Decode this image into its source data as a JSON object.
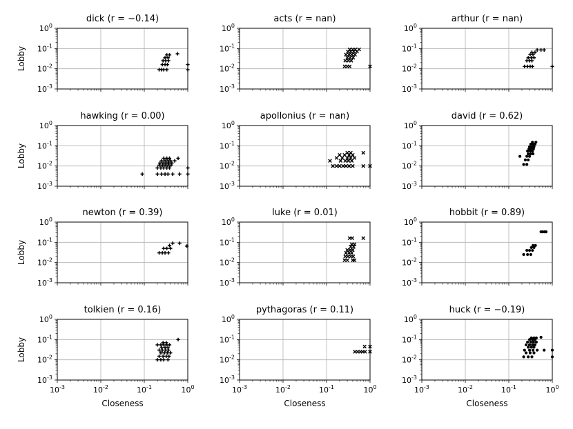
{
  "figure": {
    "xlabel": "Closeness",
    "ylabel": "Lobby"
  },
  "chart_data": [
    {
      "type": "scatter",
      "title": "dick (r = −0.14)",
      "name": "dick",
      "r": "−0.14",
      "marker": "plus",
      "xlabel": "",
      "ylabel": "Lobby",
      "xscale": "log",
      "yscale": "log",
      "xlim": [
        0.001,
        1
      ],
      "ylim": [
        0.001,
        1
      ],
      "grid": true,
      "points": [
        [
          0.22,
          0.009
        ],
        [
          0.25,
          0.009
        ],
        [
          0.28,
          0.009
        ],
        [
          0.33,
          0.009
        ],
        [
          0.26,
          0.016
        ],
        [
          0.3,
          0.016
        ],
        [
          0.34,
          0.016
        ],
        [
          0.27,
          0.025
        ],
        [
          0.31,
          0.025
        ],
        [
          0.36,
          0.025
        ],
        [
          0.3,
          0.035
        ],
        [
          0.35,
          0.035
        ],
        [
          0.33,
          0.048
        ],
        [
          0.38,
          0.048
        ],
        [
          0.58,
          0.055
        ],
        [
          1.0,
          0.009
        ],
        [
          1.0,
          0.016
        ]
      ]
    },
    {
      "type": "scatter",
      "title": "acts (r = nan)",
      "name": "acts",
      "r": "nan",
      "marker": "x",
      "xlabel": "",
      "ylabel": "",
      "xscale": "log",
      "yscale": "log",
      "xlim": [
        0.001,
        1
      ],
      "ylim": [
        0.001,
        1
      ],
      "grid": true,
      "points": [
        [
          0.26,
          0.013
        ],
        [
          0.3,
          0.013
        ],
        [
          0.34,
          0.013
        ],
        [
          0.27,
          0.025
        ],
        [
          0.32,
          0.025
        ],
        [
          0.37,
          0.025
        ],
        [
          0.3,
          0.035
        ],
        [
          0.35,
          0.035
        ],
        [
          0.41,
          0.035
        ],
        [
          0.28,
          0.05
        ],
        [
          0.33,
          0.05
        ],
        [
          0.38,
          0.05
        ],
        [
          0.45,
          0.05
        ],
        [
          0.31,
          0.07
        ],
        [
          0.36,
          0.07
        ],
        [
          0.42,
          0.07
        ],
        [
          0.5,
          0.07
        ],
        [
          0.34,
          0.09
        ],
        [
          0.4,
          0.09
        ],
        [
          0.46,
          0.09
        ],
        [
          0.56,
          0.09
        ],
        [
          1.0,
          0.013
        ]
      ]
    },
    {
      "type": "scatter",
      "title": "arthur (r = nan)",
      "name": "arthur",
      "r": "nan",
      "marker": "plus",
      "xlabel": "",
      "ylabel": "",
      "xscale": "log",
      "yscale": "log",
      "xlim": [
        0.001,
        1
      ],
      "ylim": [
        0.001,
        1
      ],
      "grid": true,
      "points": [
        [
          0.23,
          0.013
        ],
        [
          0.27,
          0.013
        ],
        [
          0.31,
          0.013
        ],
        [
          0.35,
          0.013
        ],
        [
          0.26,
          0.025
        ],
        [
          0.3,
          0.025
        ],
        [
          0.34,
          0.025
        ],
        [
          0.28,
          0.035
        ],
        [
          0.33,
          0.035
        ],
        [
          0.38,
          0.035
        ],
        [
          0.31,
          0.05
        ],
        [
          0.36,
          0.05
        ],
        [
          0.34,
          0.065
        ],
        [
          0.4,
          0.065
        ],
        [
          0.45,
          0.085
        ],
        [
          0.55,
          0.085
        ],
        [
          0.65,
          0.085
        ],
        [
          1.0,
          0.013
        ]
      ]
    },
    {
      "type": "scatter",
      "title": "hawking (r = 0.00)",
      "name": "hawking",
      "r": "0.00",
      "marker": "plus",
      "xlabel": "",
      "ylabel": "Lobby",
      "xscale": "log",
      "yscale": "log",
      "xlim": [
        0.001,
        1
      ],
      "ylim": [
        0.001,
        1
      ],
      "grid": true,
      "points": [
        [
          0.09,
          0.004
        ],
        [
          0.2,
          0.004
        ],
        [
          0.25,
          0.004
        ],
        [
          0.3,
          0.004
        ],
        [
          0.35,
          0.004
        ],
        [
          0.45,
          0.004
        ],
        [
          0.65,
          0.004
        ],
        [
          1.0,
          0.004
        ],
        [
          0.2,
          0.008
        ],
        [
          0.24,
          0.008
        ],
        [
          0.28,
          0.008
        ],
        [
          0.33,
          0.008
        ],
        [
          0.38,
          0.008
        ],
        [
          1.0,
          0.008
        ],
        [
          0.22,
          0.011
        ],
        [
          0.26,
          0.011
        ],
        [
          0.3,
          0.011
        ],
        [
          0.35,
          0.011
        ],
        [
          0.41,
          0.011
        ],
        [
          0.23,
          0.014
        ],
        [
          0.27,
          0.014
        ],
        [
          0.32,
          0.014
        ],
        [
          0.37,
          0.014
        ],
        [
          0.43,
          0.014
        ],
        [
          0.25,
          0.018
        ],
        [
          0.3,
          0.018
        ],
        [
          0.35,
          0.018
        ],
        [
          0.4,
          0.018
        ],
        [
          0.5,
          0.018
        ],
        [
          0.28,
          0.024
        ],
        [
          0.33,
          0.024
        ],
        [
          0.38,
          0.024
        ],
        [
          0.6,
          0.024
        ]
      ]
    },
    {
      "type": "scatter",
      "title": "apollonius (r = nan)",
      "name": "apollonius",
      "r": "nan",
      "marker": "x",
      "xlabel": "",
      "ylabel": "",
      "xscale": "log",
      "yscale": "log",
      "xlim": [
        0.001,
        1
      ],
      "ylim": [
        0.001,
        1
      ],
      "grid": true,
      "points": [
        [
          0.14,
          0.01
        ],
        [
          0.17,
          0.01
        ],
        [
          0.2,
          0.01
        ],
        [
          0.24,
          0.01
        ],
        [
          0.28,
          0.01
        ],
        [
          0.33,
          0.01
        ],
        [
          0.4,
          0.01
        ],
        [
          0.7,
          0.01
        ],
        [
          1.0,
          0.01
        ],
        [
          0.12,
          0.018
        ],
        [
          0.21,
          0.018
        ],
        [
          0.27,
          0.018
        ],
        [
          0.32,
          0.018
        ],
        [
          0.38,
          0.018
        ],
        [
          0.17,
          0.025
        ],
        [
          0.23,
          0.025
        ],
        [
          0.3,
          0.025
        ],
        [
          0.36,
          0.025
        ],
        [
          0.44,
          0.025
        ],
        [
          0.2,
          0.035
        ],
        [
          0.26,
          0.035
        ],
        [
          0.33,
          0.035
        ],
        [
          0.4,
          0.035
        ],
        [
          0.3,
          0.045
        ],
        [
          0.36,
          0.045
        ],
        [
          0.7,
          0.045
        ]
      ]
    },
    {
      "type": "scatter",
      "title": "david (r = 0.62)",
      "name": "david",
      "r": "0.62",
      "marker": "dot",
      "xlabel": "",
      "ylabel": "",
      "xscale": "log",
      "yscale": "log",
      "xlim": [
        0.001,
        1
      ],
      "ylim": [
        0.001,
        1
      ],
      "grid": true,
      "points": [
        [
          0.18,
          0.03
        ],
        [
          0.22,
          0.012
        ],
        [
          0.26,
          0.012
        ],
        [
          0.24,
          0.02
        ],
        [
          0.28,
          0.02
        ],
        [
          0.26,
          0.03
        ],
        [
          0.3,
          0.03
        ],
        [
          0.28,
          0.04
        ],
        [
          0.32,
          0.04
        ],
        [
          0.36,
          0.04
        ],
        [
          0.27,
          0.055
        ],
        [
          0.31,
          0.055
        ],
        [
          0.35,
          0.055
        ],
        [
          0.29,
          0.07
        ],
        [
          0.33,
          0.07
        ],
        [
          0.37,
          0.07
        ],
        [
          0.3,
          0.09
        ],
        [
          0.34,
          0.09
        ],
        [
          0.38,
          0.09
        ],
        [
          0.32,
          0.12
        ],
        [
          0.36,
          0.12
        ],
        [
          0.4,
          0.12
        ],
        [
          0.35,
          0.15
        ],
        [
          0.42,
          0.15
        ]
      ]
    },
    {
      "type": "scatter",
      "title": "newton (r = 0.39)",
      "name": "newton",
      "r": "0.39",
      "marker": "plus",
      "xlabel": "",
      "ylabel": "Lobby",
      "xscale": "log",
      "yscale": "log",
      "xlim": [
        0.001,
        1
      ],
      "ylim": [
        0.001,
        1
      ],
      "grid": true,
      "points": [
        [
          0.22,
          0.03
        ],
        [
          0.26,
          0.03
        ],
        [
          0.3,
          0.03
        ],
        [
          0.36,
          0.03
        ],
        [
          0.28,
          0.05
        ],
        [
          0.33,
          0.05
        ],
        [
          0.4,
          0.05
        ],
        [
          0.38,
          0.07
        ],
        [
          0.45,
          0.09
        ],
        [
          0.65,
          0.09
        ],
        [
          0.95,
          0.065
        ]
      ]
    },
    {
      "type": "scatter",
      "title": "luke (r = 0.01)",
      "name": "luke",
      "r": "0.01",
      "marker": "x",
      "xlabel": "",
      "ylabel": "",
      "xscale": "log",
      "yscale": "log",
      "xlim": [
        0.001,
        1
      ],
      "ylim": [
        0.001,
        1
      ],
      "grid": true,
      "points": [
        [
          0.26,
          0.013
        ],
        [
          0.3,
          0.013
        ],
        [
          0.4,
          0.013
        ],
        [
          0.44,
          0.013
        ],
        [
          0.27,
          0.02
        ],
        [
          0.31,
          0.02
        ],
        [
          0.36,
          0.02
        ],
        [
          0.41,
          0.02
        ],
        [
          0.28,
          0.03
        ],
        [
          0.33,
          0.03
        ],
        [
          0.38,
          0.03
        ],
        [
          0.3,
          0.042
        ],
        [
          0.35,
          0.042
        ],
        [
          0.4,
          0.042
        ],
        [
          0.36,
          0.06
        ],
        [
          0.42,
          0.06
        ],
        [
          0.38,
          0.08
        ],
        [
          0.44,
          0.08
        ],
        [
          0.34,
          0.16
        ],
        [
          0.39,
          0.16
        ],
        [
          0.7,
          0.16
        ]
      ]
    },
    {
      "type": "scatter",
      "title": "hobbit (r = 0.89)",
      "name": "hobbit",
      "r": "0.89",
      "marker": "dot",
      "xlabel": "",
      "ylabel": "",
      "xscale": "log",
      "yscale": "log",
      "xlim": [
        0.001,
        1
      ],
      "ylim": [
        0.001,
        1
      ],
      "grid": true,
      "points": [
        [
          0.22,
          0.025
        ],
        [
          0.27,
          0.025
        ],
        [
          0.32,
          0.025
        ],
        [
          0.26,
          0.04
        ],
        [
          0.3,
          0.04
        ],
        [
          0.35,
          0.04
        ],
        [
          0.33,
          0.055
        ],
        [
          0.38,
          0.055
        ],
        [
          0.36,
          0.07
        ],
        [
          0.41,
          0.07
        ],
        [
          0.55,
          0.33
        ],
        [
          0.6,
          0.33
        ],
        [
          0.66,
          0.33
        ],
        [
          0.72,
          0.33
        ]
      ]
    },
    {
      "type": "scatter",
      "title": "tolkien (r = 0.16)",
      "name": "tolkien",
      "r": "0.16",
      "marker": "plus",
      "xlabel": "",
      "ylabel": "Lobby",
      "xscale": "log",
      "yscale": "log",
      "xlim": [
        0.001,
        1
      ],
      "ylim": [
        0.001,
        1
      ],
      "grid": true,
      "points": [
        [
          0.2,
          0.01
        ],
        [
          0.24,
          0.01
        ],
        [
          0.28,
          0.01
        ],
        [
          0.35,
          0.01
        ],
        [
          0.22,
          0.015
        ],
        [
          0.27,
          0.015
        ],
        [
          0.32,
          0.015
        ],
        [
          0.37,
          0.015
        ],
        [
          0.24,
          0.022
        ],
        [
          0.29,
          0.022
        ],
        [
          0.34,
          0.022
        ],
        [
          0.4,
          0.022
        ],
        [
          0.22,
          0.03
        ],
        [
          0.26,
          0.03
        ],
        [
          0.31,
          0.03
        ],
        [
          0.36,
          0.03
        ],
        [
          0.25,
          0.04
        ],
        [
          0.3,
          0.04
        ],
        [
          0.35,
          0.04
        ],
        [
          0.2,
          0.055
        ],
        [
          0.24,
          0.055
        ],
        [
          0.28,
          0.055
        ],
        [
          0.33,
          0.055
        ],
        [
          0.38,
          0.055
        ],
        [
          0.27,
          0.07
        ],
        [
          0.32,
          0.07
        ],
        [
          0.6,
          0.1
        ]
      ]
    },
    {
      "type": "scatter",
      "title": "pythagoras (r = 0.11)",
      "name": "pythagoras",
      "r": "0.11",
      "marker": "x",
      "xlabel": "",
      "ylabel": "",
      "xscale": "log",
      "yscale": "log",
      "xlim": [
        0.001,
        1
      ],
      "ylim": [
        0.001,
        1
      ],
      "grid": true,
      "points": [
        [
          0.45,
          0.025
        ],
        [
          0.52,
          0.025
        ],
        [
          0.6,
          0.025
        ],
        [
          0.68,
          0.025
        ],
        [
          0.77,
          0.025
        ],
        [
          1.0,
          0.025
        ],
        [
          0.75,
          0.045
        ],
        [
          1.0,
          0.045
        ]
      ]
    },
    {
      "type": "scatter",
      "title": "huck (r = −0.19)",
      "name": "huck",
      "r": "−0.19",
      "marker": "dot",
      "xlabel": "",
      "ylabel": "",
      "xscale": "log",
      "yscale": "log",
      "xlim": [
        0.001,
        1
      ],
      "ylim": [
        0.001,
        1
      ],
      "grid": true,
      "points": [
        [
          0.22,
          0.014
        ],
        [
          0.28,
          0.014
        ],
        [
          0.34,
          0.014
        ],
        [
          0.25,
          0.022
        ],
        [
          0.31,
          0.022
        ],
        [
          0.38,
          0.022
        ],
        [
          0.23,
          0.03
        ],
        [
          0.3,
          0.03
        ],
        [
          0.36,
          0.03
        ],
        [
          0.45,
          0.03
        ],
        [
          0.65,
          0.03
        ],
        [
          0.28,
          0.042
        ],
        [
          0.33,
          0.042
        ],
        [
          0.38,
          0.042
        ],
        [
          0.25,
          0.055
        ],
        [
          0.3,
          0.055
        ],
        [
          0.35,
          0.055
        ],
        [
          0.4,
          0.055
        ],
        [
          0.27,
          0.075
        ],
        [
          0.32,
          0.075
        ],
        [
          0.37,
          0.075
        ],
        [
          0.43,
          0.075
        ],
        [
          0.3,
          0.1
        ],
        [
          0.35,
          0.1
        ],
        [
          0.4,
          0.1
        ],
        [
          0.33,
          0.12
        ],
        [
          0.38,
          0.12
        ],
        [
          0.43,
          0.12
        ],
        [
          0.55,
          0.13
        ],
        [
          1.0,
          0.014
        ],
        [
          1.0,
          0.03
        ]
      ]
    }
  ]
}
